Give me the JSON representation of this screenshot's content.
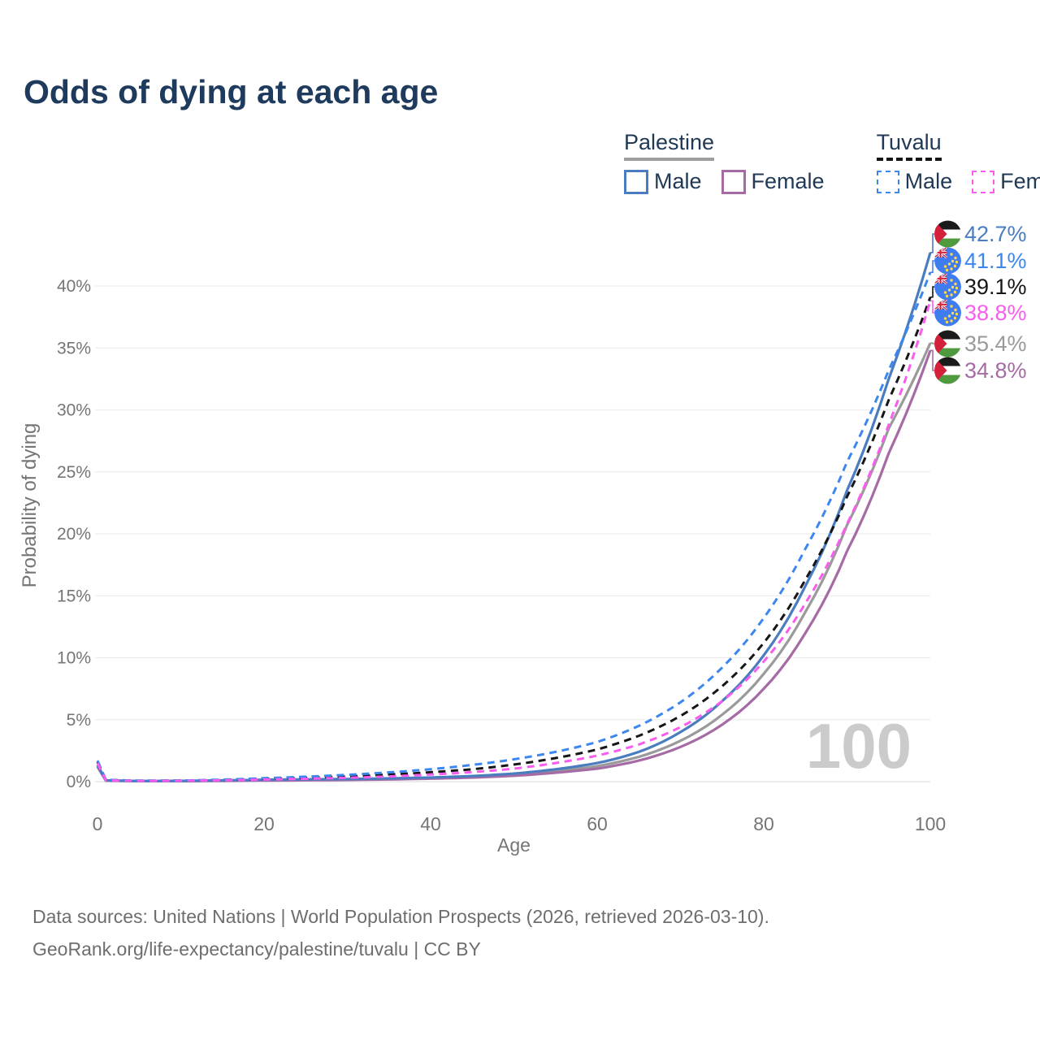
{
  "title": "Odds of dying at each age",
  "legend": {
    "groups": [
      {
        "name": "Palestine",
        "swatch_style": "solid",
        "swatch_color": "#9e9e9e",
        "items": [
          {
            "label": "Male",
            "color": "#4a7dc0",
            "dashed": false
          },
          {
            "label": "Female",
            "color": "#a66ba5",
            "dashed": false
          }
        ]
      },
      {
        "name": "Tuvalu",
        "swatch_style": "dashed",
        "swatch_color": "#161616",
        "items": [
          {
            "label": "Male",
            "color": "#3c86f0",
            "dashed": true
          },
          {
            "label": "Female",
            "color": "#f95cee",
            "dashed": true
          }
        ]
      }
    ]
  },
  "watermark": "100",
  "footer": {
    "line1": "Data sources: United Nations | World Population Prospects (2026, retrieved 2026-03-10).",
    "line2": "GeoRank.org/life-expectancy/palestine/tuvalu | CC BY"
  },
  "chart_data": {
    "type": "line",
    "title": "Odds of dying at each age",
    "xlabel": "Age",
    "ylabel": "Probability of dying",
    "xlim": [
      0,
      100
    ],
    "ylim_percent": [
      0,
      44
    ],
    "x_ticks": [
      0,
      20,
      40,
      60,
      80,
      100
    ],
    "y_ticks_percent": [
      0,
      5,
      10,
      15,
      20,
      25,
      30,
      35,
      40
    ],
    "grid": "horizontal",
    "legend_position": "top-right",
    "ages": [
      0,
      1,
      5,
      10,
      15,
      20,
      25,
      30,
      35,
      40,
      45,
      50,
      55,
      60,
      65,
      70,
      75,
      80,
      85,
      90,
      95,
      100
    ],
    "series": [
      {
        "name": "Palestine Male",
        "flag": "palestine",
        "color": "#4a7dc0",
        "dashed": false,
        "end_label": "42.7%",
        "values_percent": [
          1.35,
          0.1,
          0.05,
          0.06,
          0.1,
          0.15,
          0.18,
          0.21,
          0.26,
          0.33,
          0.45,
          0.65,
          1.0,
          1.5,
          2.4,
          4.0,
          6.5,
          10.2,
          15.8,
          23.5,
          32.5,
          42.7
        ]
      },
      {
        "name": "Tuvalu Male",
        "flag": "tuvalu",
        "color": "#3c86f0",
        "dashed": true,
        "end_label": "41.1%",
        "values_percent": [
          1.7,
          0.15,
          0.08,
          0.09,
          0.16,
          0.28,
          0.4,
          0.55,
          0.75,
          1.0,
          1.35,
          1.8,
          2.4,
          3.2,
          4.5,
          6.4,
          9.2,
          13.2,
          18.8,
          25.8,
          33.2,
          41.1
        ]
      },
      {
        "name": "Tuvalu (both sexes)",
        "flag": "tuvalu",
        "color": "#161616",
        "dashed": true,
        "end_label": "39.1%",
        "values_percent": [
          1.6,
          0.13,
          0.07,
          0.08,
          0.13,
          0.22,
          0.31,
          0.42,
          0.57,
          0.76,
          1.0,
          1.38,
          1.9,
          2.6,
          3.7,
          5.3,
          7.7,
          11.2,
          16.3,
          23.0,
          30.8,
          39.1
        ]
      },
      {
        "name": "Tuvalu Female",
        "flag": "tuvalu",
        "color": "#f95cee",
        "dashed": true,
        "end_label": "38.8%",
        "values_percent": [
          1.5,
          0.11,
          0.06,
          0.07,
          0.11,
          0.17,
          0.23,
          0.31,
          0.42,
          0.57,
          0.77,
          1.05,
          1.5,
          2.1,
          3.0,
          4.4,
          6.5,
          9.7,
          14.4,
          20.8,
          28.8,
          38.8
        ]
      },
      {
        "name": "Palestine (both sexes)",
        "flag": "palestine",
        "color": "#9a9a9a",
        "dashed": false,
        "end_label": "35.4%",
        "values_percent": [
          1.3,
          0.09,
          0.05,
          0.05,
          0.08,
          0.12,
          0.15,
          0.18,
          0.22,
          0.28,
          0.38,
          0.55,
          0.85,
          1.25,
          2.0,
          3.3,
          5.4,
          8.7,
          13.7,
          20.7,
          28.5,
          35.4
        ]
      },
      {
        "name": "Palestine Female",
        "flag": "palestine",
        "color": "#a66ba5",
        "dashed": false,
        "end_label": "34.8%",
        "values_percent": [
          1.2,
          0.08,
          0.04,
          0.04,
          0.06,
          0.09,
          0.11,
          0.14,
          0.18,
          0.24,
          0.33,
          0.47,
          0.72,
          1.05,
          1.7,
          2.8,
          4.6,
          7.5,
          12.0,
          18.6,
          26.5,
          34.8
        ]
      }
    ]
  }
}
